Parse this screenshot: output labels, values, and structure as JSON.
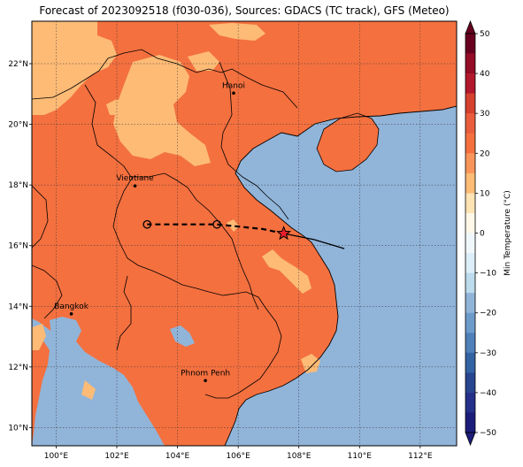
{
  "title": "Forecast of 2023092518 (f030-036), Sources: GDACS (TC track), GFS (Meteo)",
  "map": {
    "lon_range": [
      99.2,
      113.2
    ],
    "lat_range": [
      9.4,
      23.4
    ],
    "lon_ticks": [
      "100°E",
      "102°E",
      "104°E",
      "106°E",
      "108°E",
      "110°E",
      "112°E"
    ],
    "lat_ticks": [
      "10°N",
      "12°N",
      "14°N",
      "16°N",
      "18°N",
      "20°N",
      "22°N"
    ],
    "gridlines": true,
    "colors": {
      "ocean": "#91b4d9",
      "land_20_30": "#f4703f",
      "land_10_20": "#fdbb76",
      "border": "#000000"
    }
  },
  "cities": [
    {
      "name": "Hanoi",
      "lon": 105.85,
      "lat": 21.03
    },
    {
      "name": "Vientiane",
      "lon": 102.6,
      "lat": 17.97
    },
    {
      "name": "Bangkok",
      "lon": 100.5,
      "lat": 13.75
    },
    {
      "name": "Phnom Penh",
      "lon": 104.92,
      "lat": 11.55
    }
  ],
  "storm": {
    "marker": "star",
    "position": {
      "lon": 107.5,
      "lat": 16.4
    },
    "forecast_track": [
      {
        "lon": 107.5,
        "lat": 16.4
      },
      {
        "lon": 106.8,
        "lat": 16.55
      },
      {
        "lon": 105.3,
        "lat": 16.7
      },
      {
        "lon": 103.0,
        "lat": 16.7
      }
    ],
    "past_track": [
      {
        "lon": 107.5,
        "lat": 16.4
      },
      {
        "lon": 108.5,
        "lat": 16.2
      },
      {
        "lon": 109.5,
        "lat": 15.9
      }
    ],
    "forecast_points": [
      {
        "lon": 105.3,
        "lat": 16.7
      },
      {
        "lon": 103.0,
        "lat": 16.7
      }
    ]
  },
  "colorbar": {
    "label": "Min Temperature (°C)",
    "ticks": [
      "50",
      "40",
      "30",
      "20",
      "10",
      "0",
      "−10",
      "−20",
      "−30",
      "−40",
      "−50"
    ],
    "bins": [
      {
        "from": 45,
        "to": 50,
        "color": "#67001f"
      },
      {
        "from": 40,
        "to": 45,
        "color": "#940c26"
      },
      {
        "from": 35,
        "to": 40,
        "color": "#b2182b"
      },
      {
        "from": 30,
        "to": 35,
        "color": "#d6402f"
      },
      {
        "from": 25,
        "to": 30,
        "color": "#e95d3c"
      },
      {
        "from": 20,
        "to": 25,
        "color": "#f4703f"
      },
      {
        "from": 15,
        "to": 20,
        "color": "#f9955a"
      },
      {
        "from": 10,
        "to": 15,
        "color": "#fdbb76"
      },
      {
        "from": 5,
        "to": 10,
        "color": "#fee3b4"
      },
      {
        "from": 0,
        "to": 5,
        "color": "#fff7e8"
      },
      {
        "from": -5,
        "to": 0,
        "color": "#f1f8fc"
      },
      {
        "from": -10,
        "to": -5,
        "color": "#dceef7"
      },
      {
        "from": -15,
        "to": -10,
        "color": "#bcdbed"
      },
      {
        "from": -20,
        "to": -15,
        "color": "#91b4d9"
      },
      {
        "from": -25,
        "to": -20,
        "color": "#6d9ccb"
      },
      {
        "from": -30,
        "to": -25,
        "color": "#4f80ba"
      },
      {
        "from": -35,
        "to": -30,
        "color": "#3463a3"
      },
      {
        "from": -40,
        "to": -35,
        "color": "#28468f"
      },
      {
        "from": -45,
        "to": -40,
        "color": "#24308a"
      },
      {
        "from": -50,
        "to": -45,
        "color": "#1c1d7a"
      }
    ]
  }
}
